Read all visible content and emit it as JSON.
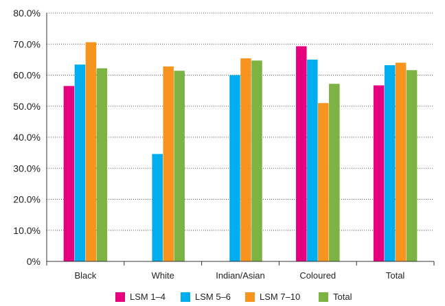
{
  "chart_data": {
    "type": "bar",
    "title": "",
    "xlabel": "",
    "ylabel": "",
    "categories": [
      "Black",
      "White",
      "Indian/Asian",
      "Coloured",
      "Total"
    ],
    "series": [
      {
        "name": "LSM 1–4",
        "color": "#e6007e",
        "values": [
          56.5,
          null,
          null,
          69.3,
          56.7
        ]
      },
      {
        "name": "LSM 5–6",
        "color": "#00aeef",
        "values": [
          63.4,
          34.6,
          60.0,
          65.0,
          63.2
        ]
      },
      {
        "name": "LSM 7–10",
        "color": "#f7941d",
        "values": [
          70.6,
          62.8,
          65.4,
          51.0,
          64.0
        ]
      },
      {
        "name": "Total",
        "color": "#7cb342",
        "values": [
          62.2,
          61.4,
          64.7,
          57.2,
          61.6
        ]
      }
    ],
    "ylim": [
      0,
      80
    ],
    "yticks": [
      0,
      10,
      20,
      30,
      40,
      50,
      60,
      70,
      80
    ],
    "ytick_labels": [
      "0%",
      "10.0%",
      "20.0%",
      "30.0%",
      "40.0%",
      "50.0%",
      "60.0%",
      "70.0%",
      "80.0%"
    ],
    "grid": "dotted horizontal",
    "legend_position": "bottom"
  }
}
